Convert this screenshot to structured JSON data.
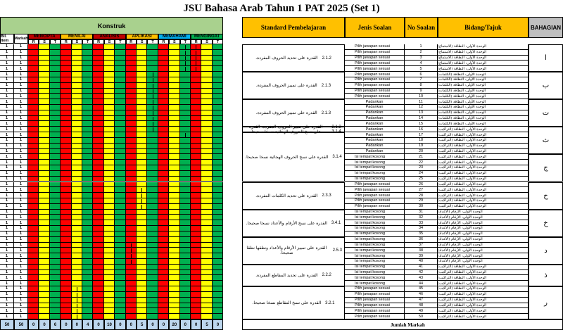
{
  "title": "JSU Bahasa Arab Tahun 1 PAT 2025 (Set 1)",
  "headers": {
    "konstruk": "Konstruk",
    "standard": "Standard Pembelajaran",
    "jenis": "Jenis Soalan",
    "no": "No Soalan",
    "bidang": "Bidang/Tajuk",
    "bahagian": "BAHAGIAN",
    "bil_item": "Bil. Item",
    "markah": "Markah"
  },
  "groups": [
    {
      "label": "MENCIPTA",
      "color": "#c00000"
    },
    {
      "label": "MENILAI",
      "color": "#ffc000"
    },
    {
      "label": "ANALISIS",
      "color": "#c00000"
    },
    {
      "label": "APLIKASI",
      "color": "#ffc000"
    },
    {
      "label": "MEMAHAMI",
      "color": "#00b0f0"
    },
    {
      "label": "MENGINGAT",
      "color": "#00b050"
    }
  ],
  "rst": [
    "R",
    "S",
    "T"
  ],
  "colors": {
    "red": "#ff0000",
    "yellow": "#ffff00",
    "green": "#00b050",
    "tot": "#bdd7ee"
  },
  "jenis_types": {
    "PJ": "Pilih jawapan sesuai",
    "PD": "Padankan",
    "IT": "Isi tempat kosong"
  },
  "questions": [
    {
      "no": "1",
      "jenis": "PJ",
      "bidang": "الوحدة الأولى: النظافة (الاستماع)"
    },
    {
      "no": "2",
      "jenis": "PJ",
      "bidang": "الوحدة الأولى: النظافة (الاستماع)"
    },
    {
      "no": "3",
      "jenis": "PJ",
      "bidang": "الوحدة الأولى: النظافة (الاستماع)"
    },
    {
      "no": "4",
      "jenis": "PJ",
      "bidang": "الوحدة الأولى: النظافة (الاستماع)"
    },
    {
      "no": "5",
      "jenis": "PJ",
      "bidang": "الوحدة الأولى: النظافة (الاستماع)"
    },
    {
      "no": "6",
      "jenis": "PJ",
      "bidang": "الوحدة الأولى: النظافة (الكلمات)"
    },
    {
      "no": "7",
      "jenis": "PJ",
      "bidang": "الوحدة الأولى: النظافة (الكلمات)"
    },
    {
      "no": "8",
      "jenis": "PJ",
      "bidang": "الوحدة الأولى: النظافة (الكلمات)"
    },
    {
      "no": "9",
      "jenis": "PJ",
      "bidang": "الوحدة الأولى: النظافة (الكلمات)"
    },
    {
      "no": "10",
      "jenis": "PJ",
      "bidang": "الوحدة الأولى: النظافة (الكلمات)"
    },
    {
      "no": "11",
      "jenis": "PD",
      "bidang": "الوحدة الأولى: النظافة (الكلمات)"
    },
    {
      "no": "12",
      "jenis": "PD",
      "bidang": "الوحدة الأولى: النظافة (الكلمات)"
    },
    {
      "no": "13",
      "jenis": "PD",
      "bidang": "الوحدة الأولى: النظافة (الكلمات)"
    },
    {
      "no": "14",
      "jenis": "PD",
      "bidang": "الوحدة الأولى: النظافة (الكلمات)"
    },
    {
      "no": "15",
      "jenis": "PD",
      "bidang": "الوحدة الأولى: النظافة (الكلمات)"
    },
    {
      "no": "16",
      "jenis": "PD",
      "bidang": "الوحدة الأولى: النظافة (التراكيب)"
    },
    {
      "no": "17",
      "jenis": "PD",
      "bidang": "الوحدة الأولى: النظافة (التراكيب)"
    },
    {
      "no": "18",
      "jenis": "PD",
      "bidang": "الوحدة الأولى: النظافة (التراكيب)"
    },
    {
      "no": "19",
      "jenis": "PD",
      "bidang": "الوحدة الأولى: النظافة (التراكيب)"
    },
    {
      "no": "20",
      "jenis": "PD",
      "bidang": "الوحدة الأولى: النظافة (التراكيب)"
    },
    {
      "no": "21",
      "jenis": "IT",
      "bidang": "الوحدة الأولى: النظافة (التراكيب)"
    },
    {
      "no": "22",
      "jenis": "IT",
      "bidang": "الوحدة الأولى: النظافة (التراكيب)"
    },
    {
      "no": "23",
      "jenis": "IT",
      "bidang": "الوحدة الأولى: النظافة (التراكيب)"
    },
    {
      "no": "24",
      "jenis": "IT",
      "bidang": "الوحدة الأولى: النظافة (التراكيب)"
    },
    {
      "no": "25",
      "jenis": "IT",
      "bidang": "الوحدة الأولى: النظافة (التراكيب)"
    },
    {
      "no": "26",
      "jenis": "PJ",
      "bidang": "الوحدة الأولى: النظافة (التراكيب)"
    },
    {
      "no": "27",
      "jenis": "PJ",
      "bidang": "الوحدة الأولى: النظافة (التراكيب)"
    },
    {
      "no": "28",
      "jenis": "PJ",
      "bidang": "الوحدة الأولى: النظافة (التراكيب)"
    },
    {
      "no": "29",
      "jenis": "PJ",
      "bidang": "الوحدة الأولى: النظافة (التراكيب)"
    },
    {
      "no": "30",
      "jenis": "PJ",
      "bidang": "الوحدة الأولى: النظافة (التراكيب)"
    },
    {
      "no": "31",
      "jenis": "IT",
      "bidang": "الوحدة الأولى: الأرقام (الأعداد)"
    },
    {
      "no": "32",
      "jenis": "IT",
      "bidang": "الوحدة الأولى: الأرقام (الأعداد)"
    },
    {
      "no": "33",
      "jenis": "IT",
      "bidang": "الوحدة الأولى: الأرقام (الأعداد)"
    },
    {
      "no": "34",
      "jenis": "IT",
      "bidang": "الوحدة الأولى: الأرقام (الأعداد)"
    },
    {
      "no": "35",
      "jenis": "IT",
      "bidang": "الوحدة الأولى: الأرقام (الأعداد)"
    },
    {
      "no": "36",
      "jenis": "IT",
      "bidang": "الوحدة الأولى: الأرقام (الأعداد)"
    },
    {
      "no": "37",
      "jenis": "IT",
      "bidang": "الوحدة الأولى: الأرقام (الأعداد)"
    },
    {
      "no": "38",
      "jenis": "IT",
      "bidang": "الوحدة الأولى: الأرقام (الأعداد)"
    },
    {
      "no": "39",
      "jenis": "IT",
      "bidang": "الوحدة الأولى: الأرقام (الأعداد)"
    },
    {
      "no": "40",
      "jenis": "IT",
      "bidang": "الوحدة الأولى: الأرقام (الأعداد)"
    },
    {
      "no": "41",
      "jenis": "IT",
      "bidang": "الوحدة الأولى: النظافة (التراكيب)"
    },
    {
      "no": "42",
      "jenis": "IT",
      "bidang": "الوحدة الأولى: النظافة (التراكيب)"
    },
    {
      "no": "43",
      "jenis": "IT",
      "bidang": "الوحدة الأولى: النظافة (التراكيب)"
    },
    {
      "no": "44",
      "jenis": "IT",
      "bidang": "الوحدة الأولى: النظافة (التراكيب)"
    },
    {
      "no": "45",
      "jenis": "PJ",
      "bidang": "الوحدة الأولى: النظافة (التراكيب)"
    },
    {
      "no": "46",
      "jenis": "PJ",
      "bidang": "الوحدة الأولى: النظافة (التراكيب)"
    },
    {
      "no": "47",
      "jenis": "PJ",
      "bidang": "الوحدة الأولى: النظافة (التراكيب)"
    },
    {
      "no": "48",
      "jenis": "PJ",
      "bidang": "الوحدة الأولى: النظافة (التراكيب)"
    },
    {
      "no": "49",
      "jenis": "PJ",
      "bidang": "الوحدة الأولى: النظافة (التراكيب)"
    },
    {
      "no": "50",
      "jenis": "PJ",
      "bidang": "الوحدة الأولى: النظافة (التراكيب)"
    }
  ],
  "standards": [
    {
      "from": 1,
      "to": 5,
      "code": "2.1.2",
      "text": "القدرة على تحديد الحروف المفردة."
    },
    {
      "from": 6,
      "to": 10,
      "code": "2.1.3",
      "text": "القدرة على تمييز الحروف المفردة."
    },
    {
      "from": 11,
      "to": 15,
      "code": "2.1.3",
      "text": "القدرة على تمييز الحروف المفردة."
    },
    {
      "from": 16,
      "to": 16,
      "code": "2.1.3  3.1.4",
      "text": "القدرة على تمييز الحروف المفردة. القدرة على نسخ الحروف الهجائية نسخا صحيحا."
    },
    {
      "from": 17,
      "to": 25,
      "code": "3.1.4",
      "text": "القدرة على نسخ الحروف الهجائية نسخا صحيحا."
    },
    {
      "from": 26,
      "to": 30,
      "code": "2.3.3",
      "text": "القدرة على تحديد الكلمات المفردة."
    },
    {
      "from": 31,
      "to": 35,
      "code": "3.4.1",
      "text": "القدرة على نسخ الأرقام والأعداد نسخا صحيحا."
    },
    {
      "from": 36,
      "to": 40,
      "code": "2.5.3",
      "text": "القدرة على تمييز الأرقام والأعداد ونطقها نطقا صحيحا."
    },
    {
      "from": 41,
      "to": 44,
      "code": "2.2.2",
      "text": "القدرة على تحديد المقاطع المفردة."
    },
    {
      "from": 45,
      "to": 50,
      "code": "3.2.1",
      "text": "القدرة على نسخ المقاطع نسخا صحيحا."
    }
  ],
  "bahagian": [
    {
      "from": 1,
      "to": 5,
      "label": "ا"
    },
    {
      "from": 6,
      "to": 10,
      "label": "ب"
    },
    {
      "from": 11,
      "to": 15,
      "label": "ت"
    },
    {
      "from": 16,
      "to": 20,
      "label": "ث"
    },
    {
      "from": 21,
      "to": 25,
      "label": "ج"
    },
    {
      "from": 26,
      "to": 30,
      "label": "ح"
    },
    {
      "from": 31,
      "to": 35,
      "label": "خ"
    },
    {
      "from": 36,
      "to": 40,
      "label": "د"
    },
    {
      "from": 41,
      "to": 44,
      "label": "ذ"
    },
    {
      "from": 45,
      "to": 50,
      "label": "ر"
    }
  ],
  "row_values": {
    "bil": "1",
    "markah": "1"
  },
  "totals": {
    "bil": "50",
    "markah": "50",
    "groups": [
      "0",
      "0",
      "6",
      "0",
      "0",
      "4",
      "0",
      "10",
      "0",
      "0",
      "5",
      "0",
      "0",
      "20",
      "0",
      "0",
      "5",
      "0"
    ]
  },
  "jumlah_label": "Jumlah Markah"
}
